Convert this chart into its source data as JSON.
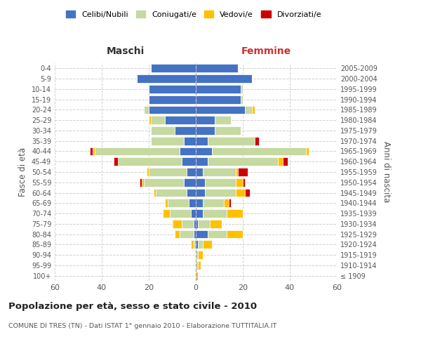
{
  "age_groups": [
    "100+",
    "95-99",
    "90-94",
    "85-89",
    "80-84",
    "75-79",
    "70-74",
    "65-69",
    "60-64",
    "55-59",
    "50-54",
    "45-49",
    "40-44",
    "35-39",
    "30-34",
    "25-29",
    "20-24",
    "15-19",
    "10-14",
    "5-9",
    "0-4"
  ],
  "birth_years": [
    "≤ 1909",
    "1910-1914",
    "1915-1919",
    "1920-1924",
    "1925-1929",
    "1930-1934",
    "1935-1939",
    "1940-1944",
    "1945-1949",
    "1950-1954",
    "1955-1959",
    "1960-1964",
    "1965-1969",
    "1970-1974",
    "1975-1979",
    "1980-1984",
    "1985-1989",
    "1990-1994",
    "1995-1999",
    "2000-2004",
    "2005-2009"
  ],
  "colors": {
    "celibi": "#4472C4",
    "coniugati": "#c5d9a0",
    "vedovi": "#ffc000",
    "divorziati": "#cc0000"
  },
  "maschi": {
    "celibi": [
      0,
      0,
      0,
      0,
      1,
      1,
      2,
      3,
      4,
      5,
      4,
      6,
      7,
      5,
      9,
      13,
      20,
      20,
      20,
      25,
      19
    ],
    "coniugati": [
      0,
      0,
      0,
      1,
      6,
      5,
      9,
      9,
      13,
      17,
      16,
      27,
      36,
      14,
      10,
      6,
      2,
      0,
      0,
      0,
      0
    ],
    "vedovi": [
      0,
      0,
      0,
      1,
      2,
      4,
      3,
      1,
      1,
      1,
      1,
      0,
      1,
      0,
      0,
      1,
      0,
      0,
      0,
      0,
      0
    ],
    "divorziati": [
      0,
      0,
      0,
      0,
      0,
      0,
      0,
      0,
      0,
      1,
      0,
      2,
      1,
      0,
      0,
      0,
      0,
      0,
      0,
      0,
      0
    ]
  },
  "femmine": {
    "celibi": [
      0,
      0,
      0,
      1,
      5,
      1,
      3,
      3,
      4,
      4,
      3,
      5,
      7,
      5,
      8,
      8,
      21,
      19,
      19,
      24,
      18
    ],
    "coniugati": [
      0,
      1,
      1,
      2,
      8,
      5,
      10,
      9,
      13,
      13,
      14,
      30,
      40,
      20,
      11,
      7,
      3,
      1,
      1,
      0,
      0
    ],
    "vedovi": [
      1,
      1,
      2,
      4,
      7,
      5,
      7,
      2,
      4,
      3,
      1,
      2,
      1,
      0,
      0,
      0,
      1,
      0,
      0,
      0,
      0
    ],
    "divorziati": [
      0,
      0,
      0,
      0,
      0,
      0,
      0,
      1,
      2,
      1,
      4,
      2,
      0,
      2,
      0,
      0,
      0,
      0,
      0,
      0,
      0
    ]
  },
  "xlim": 60,
  "title": "Popolazione per età, sesso e stato civile - 2010",
  "subtitle": "COMUNE DI TRES (TN) - Dati ISTAT 1° gennaio 2010 - Elaborazione TUTTITALIA.IT",
  "xlabel_left": "Maschi",
  "xlabel_right": "Femmine",
  "ylabel_left": "Fasce di età",
  "ylabel_right": "Anni di nascita",
  "legend_labels": [
    "Celibi/Nubili",
    "Coniugati/e",
    "Vedovi/e",
    "Divorziati/e"
  ],
  "bg_color": "#ffffff",
  "grid_color": "#cccccc"
}
